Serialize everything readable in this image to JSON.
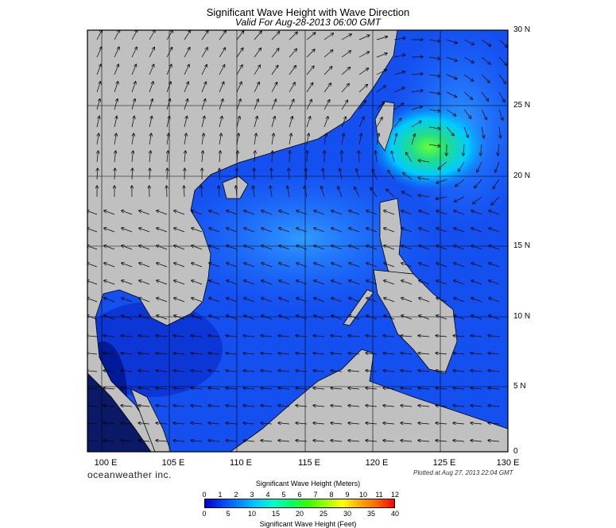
{
  "header": {
    "title": "Significant Wave Height with Wave Direction",
    "subtitle": "Valid For Aug-28-2013 06:00 GMT"
  },
  "map": {
    "lon_range": [
      99,
      130
    ],
    "lat_range": [
      0,
      30
    ],
    "lat_labels": [
      "30 N",
      "25 N",
      "20 N",
      "15 N",
      "10 N",
      "5 N",
      "0"
    ],
    "lon_labels": [
      "100 E",
      "105 E",
      "110 E",
      "115 E",
      "120 E",
      "125 E",
      "130 E"
    ],
    "land_color": "#c0c0c0",
    "max_wave_area": "east of Taiwan"
  },
  "footer": {
    "brand": "oceanweather inc.",
    "plotted": "Plotted at Aug 27, 2013 22:04 GMT"
  },
  "colorbar": {
    "title_meters": "Significant Wave Height (Meters)",
    "title_feet": "Significant Wave Height (Feet)",
    "meters": [
      "0",
      "1",
      "2",
      "3",
      "4",
      "5",
      "6",
      "7",
      "8",
      "9",
      "10",
      "11",
      "12"
    ],
    "feet": [
      "0",
      "5",
      "10",
      "15",
      "20",
      "25",
      "30",
      "35",
      "40"
    ],
    "colors": [
      "#0000cc",
      "#0044ff",
      "#0088ff",
      "#00ccff",
      "#00ffcc",
      "#00ff66",
      "#33ff00",
      "#99ff00",
      "#ffff00",
      "#ffaa00",
      "#ff6600",
      "#ff0000"
    ]
  }
}
